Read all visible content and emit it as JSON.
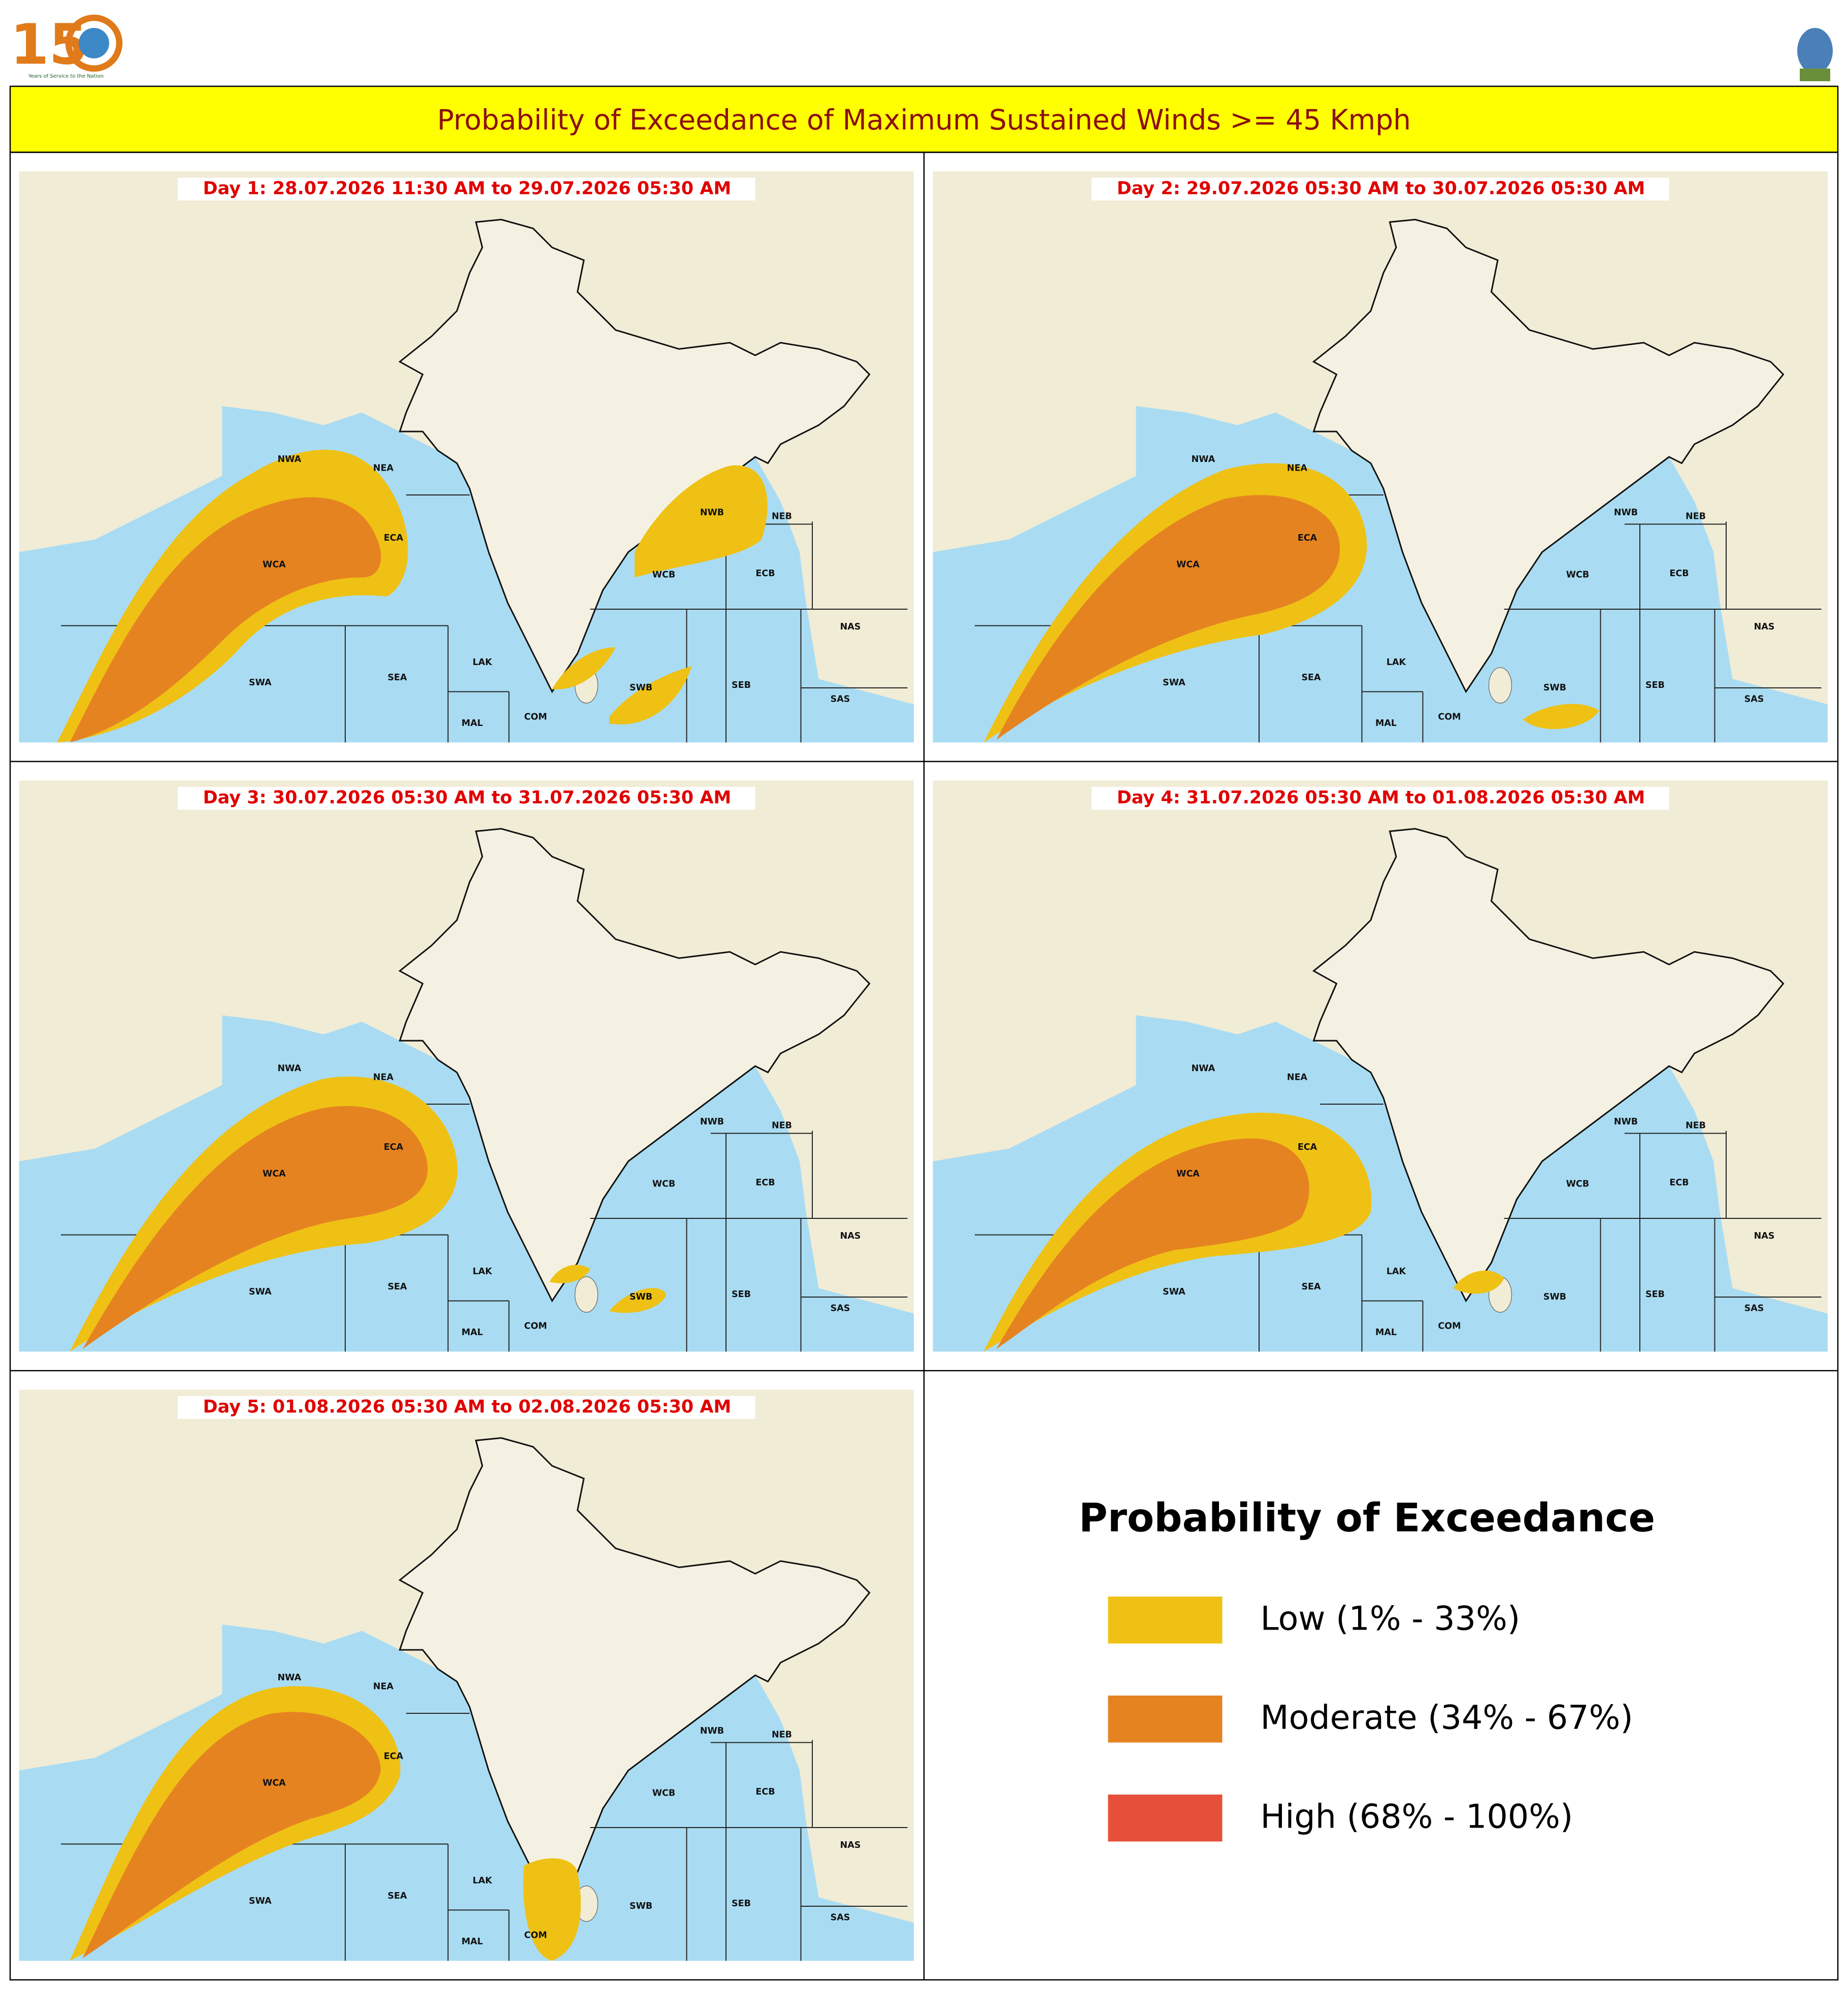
{
  "header": {
    "logo_caption": "Years of Service to the Nation",
    "title": "Probability of Exceedance of Maximum Sustained Winds >= 45 Kmph"
  },
  "map": {
    "regions": [
      "NWA",
      "NEA",
      "ECA",
      "WCA",
      "SWA",
      "SEA",
      "LAK",
      "MAL",
      "COM",
      "SWB",
      "SEB",
      "SAS",
      "NAS",
      "ECB",
      "WCB",
      "NWB",
      "NEB"
    ]
  },
  "panels": [
    {
      "label": "Day 1: 28.07.2026 11:30 AM to 29.07.2026 05:30 AM"
    },
    {
      "label": "Day 2: 29.07.2026 05:30 AM to 30.07.2026 05:30 AM"
    },
    {
      "label": "Day 3: 30.07.2026 05:30 AM to 31.07.2026 05:30 AM"
    },
    {
      "label": "Day 4: 31.07.2026 05:30 AM to 01.08.2026 05:30 AM"
    },
    {
      "label": "Day 5: 01.08.2026 05:30 AM to 02.08.2026 05:30 AM"
    }
  ],
  "legend": {
    "title": "Probability of Exceedance",
    "items": [
      {
        "label": "Low (1% - 33%)",
        "color": "#efc114"
      },
      {
        "label": "Moderate (34% - 67%)",
        "color": "#e68321"
      },
      {
        "label": "High (68% - 100%)",
        "color": "#e6503a"
      }
    ]
  }
}
